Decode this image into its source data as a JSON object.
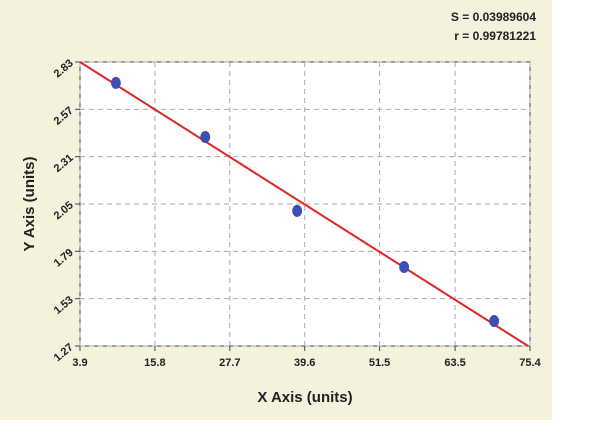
{
  "chart_data": {
    "type": "scatter",
    "stats": [
      "S = 0.03989604",
      "r = 0.99781221"
    ],
    "x_label": "X Axis (units)",
    "y_label": "Y Axis (units)",
    "x": [
      9.6,
      23.8,
      38.4,
      55.4,
      69.7
    ],
    "series": [
      {
        "color": "#3b4fb5",
        "values": [
          2.715,
          2.418,
          2.012,
          1.704,
          1.407
        ]
      }
    ],
    "fit_line": {
      "color": "#e02424",
      "x": [
        3.9,
        75.1
      ],
      "values": [
        2.83,
        1.27
      ]
    },
    "xlim": [
      3.9,
      75.4
    ],
    "ylim": [
      1.27,
      2.83
    ],
    "xticks": [
      3.9,
      15.8,
      27.7,
      39.6,
      51.5,
      63.5,
      75.4
    ],
    "yticks": [
      1.27,
      1.53,
      1.79,
      2.05,
      2.31,
      2.57,
      2.83
    ],
    "grid": true
  }
}
